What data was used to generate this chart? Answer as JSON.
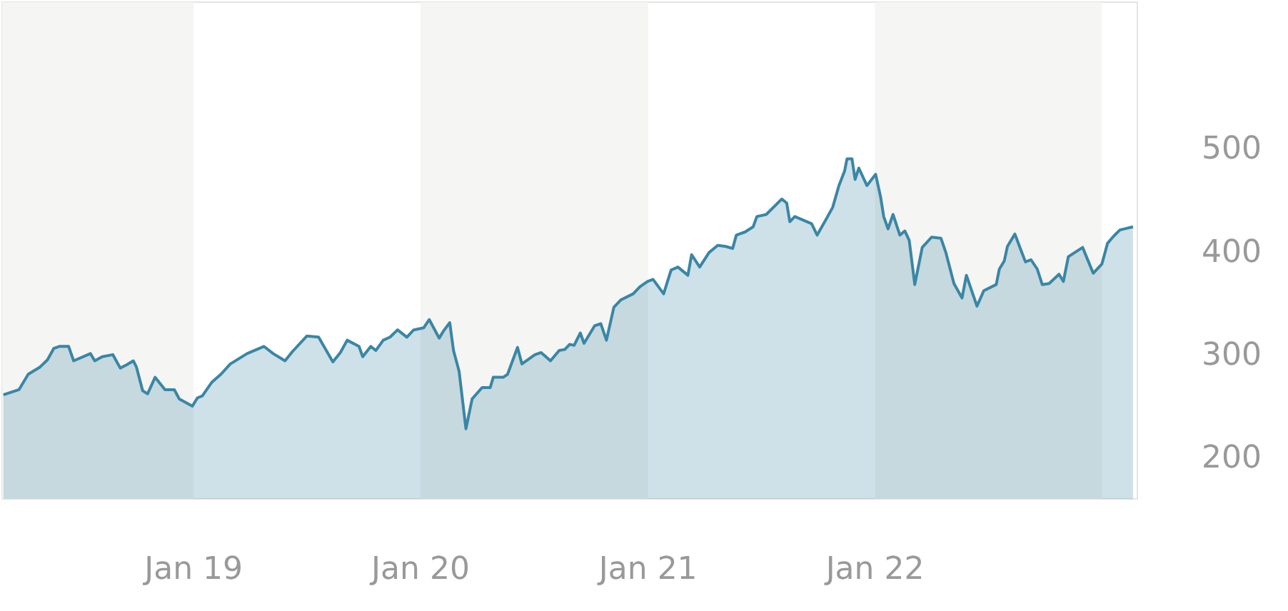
{
  "chart_data": {
    "type": "area",
    "color": "#3a86a5",
    "x": [
      "2018-03-01",
      "2018-03-26",
      "2018-04-10",
      "2018-04-29",
      "2018-05-11",
      "2018-05-21",
      "2018-05-30",
      "2018-06-14",
      "2018-06-22",
      "2018-07-19",
      "2018-07-26",
      "2018-08-07",
      "2018-08-24",
      "2018-09-05",
      "2018-09-15",
      "2018-09-26",
      "2018-10-01",
      "2018-10-11",
      "2018-10-19",
      "2018-10-31",
      "2018-11-16",
      "2018-12-01",
      "2018-12-09",
      "2018-12-30",
      "2019-01-07",
      "2019-01-15",
      "2019-01-30",
      "2019-02-14",
      "2019-03-01",
      "2019-03-28",
      "2019-04-24",
      "2019-05-09",
      "2019-05-28",
      "2019-06-09",
      "2019-07-02",
      "2019-07-21",
      "2019-08-13",
      "2019-08-25",
      "2019-09-05",
      "2019-09-24",
      "2019-09-30",
      "2019-10-13",
      "2019-10-21",
      "2019-11-02",
      "2019-11-13",
      "2019-11-25",
      "2019-12-10",
      "2019-12-21",
      "2020-01-06",
      "2020-01-15",
      "2020-01-31",
      "2020-02-07",
      "2020-02-17",
      "2020-02-23",
      "2020-03-03",
      "2020-03-14",
      "2020-03-24",
      "2020-04-09",
      "2020-04-22",
      "2020-04-27",
      "2020-05-13",
      "2020-05-20",
      "2020-06-05",
      "2020-06-12",
      "2020-07-03",
      "2020-07-13",
      "2020-07-28",
      "2020-08-11",
      "2020-08-20",
      "2020-08-28",
      "2020-09-04",
      "2020-09-14",
      "2020-09-20",
      "2020-10-07",
      "2020-10-17",
      "2020-10-26",
      "2020-11-07",
      "2020-11-18",
      "2020-12-08",
      "2020-12-19",
      "2020-12-31",
      "2021-01-09",
      "2021-01-26",
      "2021-02-07",
      "2021-02-18",
      "2021-03-06",
      "2021-03-12",
      "2021-03-25",
      "2021-04-09",
      "2021-04-23",
      "2021-05-06",
      "2021-05-17",
      "2021-05-23",
      "2021-06-06",
      "2021-06-19",
      "2021-06-25",
      "2021-07-10",
      "2021-08-04",
      "2021-08-12",
      "2021-08-17",
      "2021-08-25",
      "2021-09-21",
      "2021-09-30",
      "2021-10-14",
      "2021-10-25",
      "2021-11-04",
      "2021-11-13",
      "2021-11-17",
      "2021-11-25",
      "2021-11-30",
      "2021-12-06",
      "2021-12-19",
      "2022-01-02",
      "2022-01-10",
      "2022-01-15",
      "2022-01-22",
      "2022-01-30",
      "2022-02-10",
      "2022-02-18",
      "2022-02-25",
      "2022-03-06",
      "2022-03-18",
      "2022-04-02",
      "2022-04-17",
      "2022-04-25",
      "2022-05-08",
      "2022-05-21",
      "2022-05-28",
      "2022-06-14",
      "2022-06-25",
      "2022-07-15",
      "2022-07-20",
      "2022-07-28",
      "2022-08-02",
      "2022-08-14",
      "2022-08-24",
      "2022-08-31",
      "2022-09-09",
      "2022-09-19",
      "2022-09-27",
      "2022-10-08",
      "2022-10-24",
      "2022-10-31",
      "2022-11-08",
      "2022-12-01",
      "2022-12-18",
      "2023-01-01",
      "2023-01-10",
      "2023-01-20",
      "2023-01-30",
      "2023-02-20"
    ],
    "values": [
      259,
      264,
      279,
      286,
      293,
      304,
      306,
      306,
      292,
      299,
      292,
      296,
      298,
      285,
      288,
      292,
      286,
      263,
      260,
      276,
      264,
      264,
      255,
      248,
      256,
      258,
      271,
      279,
      289,
      299,
      306,
      299,
      292,
      301,
      316,
      315,
      291,
      300,
      312,
      306,
      296,
      306,
      302,
      312,
      315,
      322,
      315,
      322,
      324,
      332,
      314,
      321,
      329,
      302,
      282,
      226,
      255,
      266,
      266,
      276,
      276,
      279,
      305,
      289,
      298,
      300,
      292,
      302,
      303,
      308,
      307,
      319,
      309,
      326,
      328,
      312,
      344,
      351,
      357,
      364,
      369,
      371,
      357,
      380,
      383,
      375,
      395,
      383,
      397,
      404,
      403,
      401,
      414,
      417,
      422,
      432,
      434,
      449,
      445,
      427,
      432,
      425,
      414,
      429,
      441,
      462,
      476,
      488,
      488,
      468,
      479,
      462,
      473,
      451,
      432,
      420,
      434,
      414,
      418,
      409,
      366,
      402,
      412,
      411,
      397,
      367,
      353,
      375,
      345,
      360,
      366,
      381,
      389,
      403,
      415,
      399,
      388,
      390,
      381,
      366,
      367,
      376,
      369,
      393,
      402,
      377,
      386,
      406,
      413,
      419,
      422
    ],
    "xlim": [
      "2018-02-27",
      "2023-02-27"
    ],
    "xticks": [
      {
        "value": "2019-01-01",
        "label": "Jan 19"
      },
      {
        "value": "2020-01-01",
        "label": "Jan 20"
      },
      {
        "value": "2021-01-01",
        "label": "Jan 21"
      },
      {
        "value": "2022-01-01",
        "label": "Jan 22"
      }
    ],
    "ylim": [
      158,
      640
    ],
    "yticks": [
      200,
      300,
      400,
      500
    ],
    "bands": [
      {
        "axis": "x",
        "from": "2018-02-27",
        "to": "2019-01-01",
        "color": "#f5f5f3"
      },
      {
        "axis": "x",
        "from": "2020-01-01",
        "to": "2021-01-01",
        "color": "#f5f5f3"
      },
      {
        "axis": "x",
        "from": "2022-01-01",
        "to": "2023-01-01",
        "color": "#f5f5f3"
      }
    ]
  }
}
